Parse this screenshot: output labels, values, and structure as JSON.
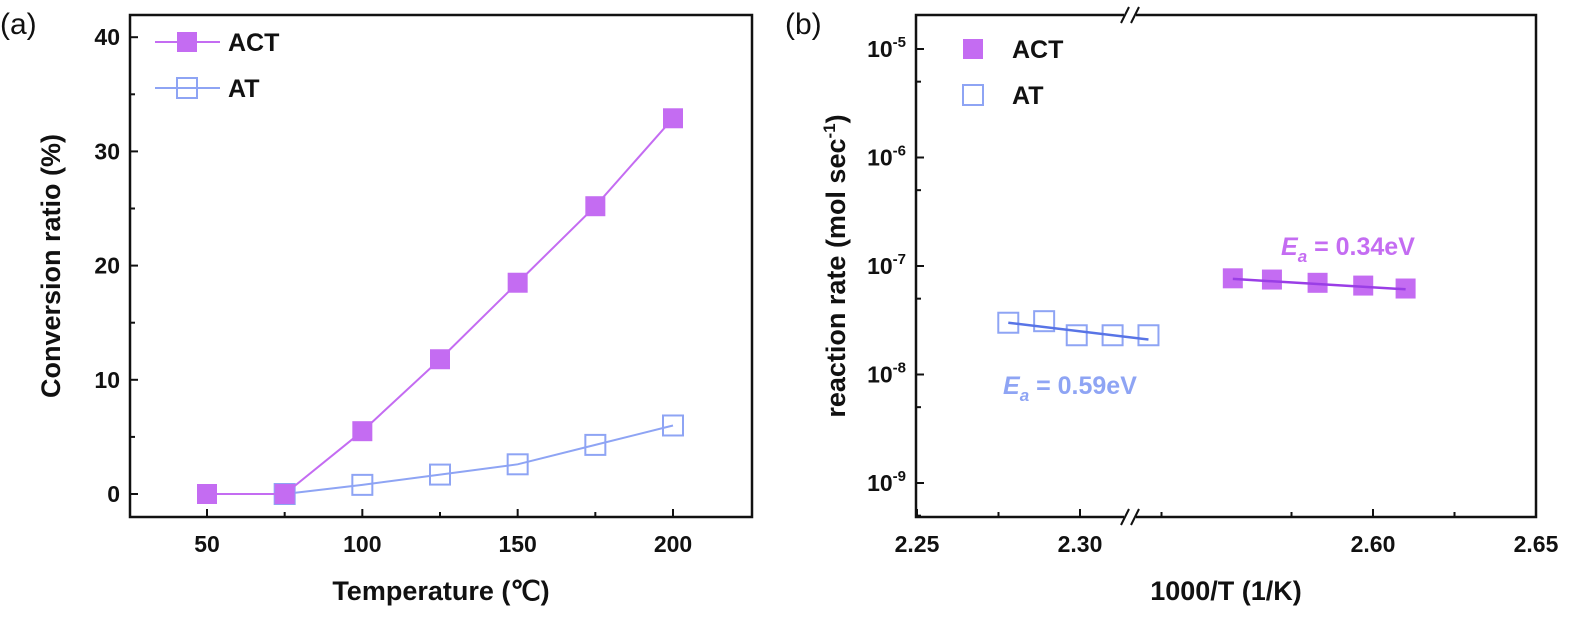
{
  "chart_data": [
    {
      "panel": "(a)",
      "type": "line",
      "xlabel": "Temperature (℃)",
      "ylabel": "Conversion ratio (%)",
      "xlim": [
        25,
        225
      ],
      "ylim": [
        -2,
        42
      ],
      "xticks": [
        "50",
        "100",
        "150",
        "200"
      ],
      "yticks": [
        "0",
        "10",
        "20",
        "30",
        "40"
      ],
      "legend_position": "top-left",
      "series": [
        {
          "name": "ACT",
          "marker": "filled-square",
          "color": "#c46cf2",
          "x": [
            50,
            75,
            100,
            125,
            150,
            175,
            200
          ],
          "y": [
            0,
            0,
            5.5,
            11.8,
            18.5,
            25.2,
            32.9
          ]
        },
        {
          "name": "AT",
          "marker": "open-square",
          "color": "#8ea4f4",
          "x": [
            75,
            100,
            125,
            150,
            175,
            200
          ],
          "y": [
            0,
            0.8,
            1.7,
            2.6,
            4.3,
            6.0
          ]
        }
      ]
    },
    {
      "panel": "(b)",
      "type": "scatter",
      "xlabel": "1000/T (1/K)",
      "ylabel": "reaction rate (mol sec",
      "ylabel_sup": "-1",
      "ylabel_end": ")",
      "yscale": "log",
      "ylim": [
        5e-10,
        2e-05
      ],
      "x_break": [
        2.315,
        2.525
      ],
      "xlim": [
        2.25,
        2.65
      ],
      "xticks": [
        "2.25",
        "2.30",
        "2.60",
        "2.65"
      ],
      "yticks": [
        {
          "base": "10",
          "exp": "-5"
        },
        {
          "base": "10",
          "exp": "-6"
        },
        {
          "base": "10",
          "exp": "-7"
        },
        {
          "base": "10",
          "exp": "-8"
        },
        {
          "base": "10",
          "exp": "-9"
        }
      ],
      "legend_position": "top-left",
      "series": [
        {
          "name": "ACT",
          "marker": "filled-square",
          "color": "#c46cf2",
          "fit_color": "#9a3ee6",
          "x": [
            2.557,
            2.569,
            2.583,
            2.597,
            2.61
          ],
          "y": [
            7.7e-08,
            7.5e-08,
            7e-08,
            6.6e-08,
            6.2e-08
          ],
          "fit": {
            "x": [
              2.557,
              2.61
            ],
            "y": [
              7.6e-08,
              6.1e-08
            ]
          }
        },
        {
          "name": "AT",
          "marker": "open-square",
          "color": "#8ea4f4",
          "fit_color": "#5874e6",
          "x": [
            2.278,
            2.289,
            2.299,
            2.31,
            2.321
          ],
          "y": [
            3e-08,
            3.1e-08,
            2.3e-08,
            2.3e-08,
            2.3e-08
          ],
          "fit": {
            "x": [
              2.278,
              2.321
            ],
            "y": [
              3e-08,
              2.1e-08
            ]
          }
        }
      ],
      "annotations": [
        {
          "symbol": "E",
          "sub": "a",
          "text": " = 0.34eV",
          "series": "ACT"
        },
        {
          "symbol": "E",
          "sub": "a",
          "text": " = 0.59eV",
          "series": "AT"
        }
      ]
    }
  ]
}
